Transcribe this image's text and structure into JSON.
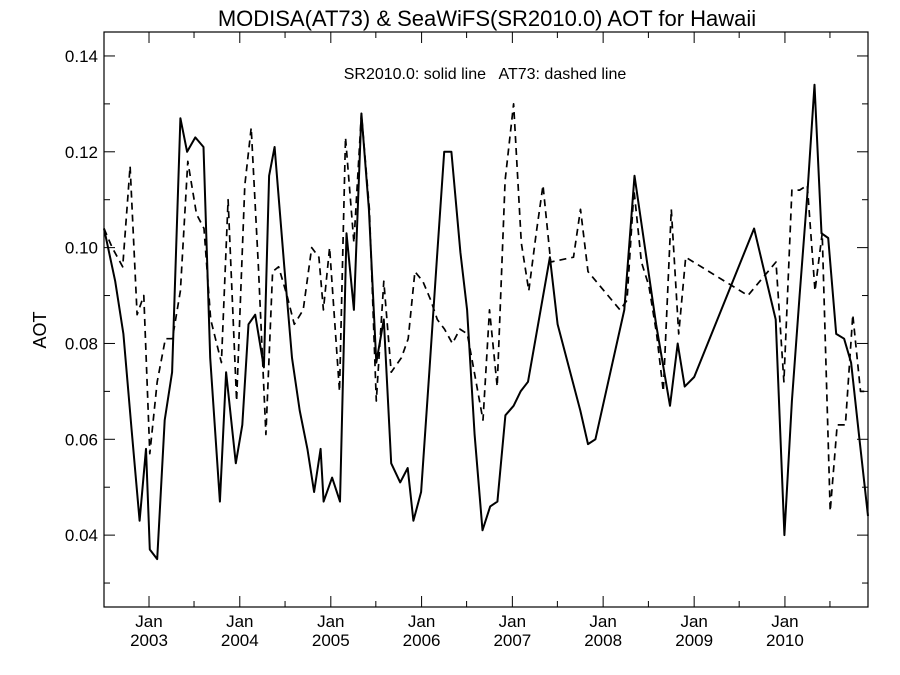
{
  "chart_data": {
    "type": "line",
    "title": "MODISA(AT73) & SeaWiFS(SR2010.0)  AOT for Hawaii",
    "ylabel": "AOT",
    "xlabel": "",
    "annotation": "SR2010.0: solid line   AT73: dashed line",
    "xlim": [
      "2002-07-04",
      "2010-12-01"
    ],
    "ylim": [
      0.025,
      0.145
    ],
    "y_ticks": [
      0.04,
      0.06,
      0.08,
      0.1,
      0.12,
      0.14
    ],
    "y_tick_labels": [
      "0.04",
      "0.06",
      "0.08",
      "0.10",
      "0.12",
      "0.14"
    ],
    "x_ticks": [
      {
        "date": "2003-01-01",
        "month": "Jan",
        "year": "2003"
      },
      {
        "date": "2004-01-01",
        "month": "Jan",
        "year": "2004"
      },
      {
        "date": "2005-01-01",
        "month": "Jan",
        "year": "2005"
      },
      {
        "date": "2006-01-01",
        "month": "Jan",
        "year": "2006"
      },
      {
        "date": "2007-01-01",
        "month": "Jan",
        "year": "2007"
      },
      {
        "date": "2008-01-01",
        "month": "Jan",
        "year": "2008"
      },
      {
        "date": "2009-01-01",
        "month": "Jan",
        "year": "2009"
      },
      {
        "date": "2010-01-01",
        "month": "Jan",
        "year": "2010"
      }
    ],
    "grid": false,
    "series": [
      {
        "name": "SR2010.0",
        "style": "solid",
        "color": "#000000",
        "points": [
          [
            "2002-07-04",
            0.104
          ],
          [
            "2002-08-18",
            0.093
          ],
          [
            "2002-09-20",
            0.082
          ],
          [
            "2002-10-23",
            0.062
          ],
          [
            "2002-11-24",
            0.043
          ],
          [
            "2002-12-20",
            0.058
          ],
          [
            "2003-01-04",
            0.037
          ],
          [
            "2003-02-03",
            0.035
          ],
          [
            "2003-03-05",
            0.064
          ],
          [
            "2003-04-04",
            0.074
          ],
          [
            "2003-05-07",
            0.127
          ],
          [
            "2003-06-03",
            0.12
          ],
          [
            "2003-07-06",
            0.123
          ],
          [
            "2003-08-08",
            0.121
          ],
          [
            "2003-09-04",
            0.077
          ],
          [
            "2003-10-13",
            0.047
          ],
          [
            "2003-11-07",
            0.074
          ],
          [
            "2003-12-16",
            0.055
          ],
          [
            "2004-01-11",
            0.063
          ],
          [
            "2004-02-05",
            0.084
          ],
          [
            "2004-03-03",
            0.086
          ],
          [
            "2004-04-07",
            0.075
          ],
          [
            "2004-04-28",
            0.115
          ],
          [
            "2004-05-20",
            0.121
          ],
          [
            "2004-06-28",
            0.096
          ],
          [
            "2004-07-29",
            0.077
          ],
          [
            "2004-08-29",
            0.066
          ],
          [
            "2004-09-29",
            0.058
          ],
          [
            "2004-10-26",
            0.049
          ],
          [
            "2004-11-21",
            0.058
          ],
          [
            "2004-12-03",
            0.047
          ],
          [
            "2005-01-06",
            0.052
          ],
          [
            "2005-02-07",
            0.047
          ],
          [
            "2005-03-05",
            0.103
          ],
          [
            "2005-04-04",
            0.087
          ],
          [
            "2005-05-04",
            0.128
          ],
          [
            "2005-06-03",
            0.108
          ],
          [
            "2005-07-03",
            0.076
          ],
          [
            "2005-08-02",
            0.085
          ],
          [
            "2005-09-01",
            0.055
          ],
          [
            "2005-10-07",
            0.051
          ],
          [
            "2005-11-06",
            0.054
          ],
          [
            "2005-11-29",
            0.043
          ],
          [
            "2005-12-30",
            0.049
          ],
          [
            "2006-02-01",
            0.074
          ],
          [
            "2006-03-04",
            0.098
          ],
          [
            "2006-04-02",
            0.12
          ],
          [
            "2006-05-01",
            0.12
          ],
          [
            "2006-06-06",
            0.099
          ],
          [
            "2006-07-03",
            0.087
          ],
          [
            "2006-08-02",
            0.061
          ],
          [
            "2006-09-03",
            0.041
          ],
          [
            "2006-10-04",
            0.046
          ],
          [
            "2006-11-02",
            0.047
          ],
          [
            "2006-12-04",
            0.065
          ],
          [
            "2007-01-06",
            0.067
          ],
          [
            "2007-02-03",
            0.07
          ],
          [
            "2007-03-05",
            0.072
          ],
          [
            "2007-06-01",
            0.098
          ],
          [
            "2007-07-02",
            0.084
          ],
          [
            "2007-10-01",
            0.066
          ],
          [
            "2007-11-01",
            0.059
          ],
          [
            "2007-12-01",
            0.06
          ],
          [
            "2008-03-26",
            0.087
          ],
          [
            "2008-05-06",
            0.115
          ],
          [
            "2008-08-01",
            0.084
          ],
          [
            "2008-09-26",
            0.067
          ],
          [
            "2008-10-27",
            0.08
          ],
          [
            "2008-11-24",
            0.071
          ],
          [
            "2009-01-01",
            0.073
          ],
          [
            "2009-08-30",
            0.104
          ],
          [
            "2009-11-25",
            0.085
          ],
          [
            "2009-12-30",
            0.04
          ],
          [
            "2010-01-29",
            0.068
          ],
          [
            "2010-03-01",
            0.09
          ],
          [
            "2010-04-01",
            0.111
          ],
          [
            "2010-04-30",
            0.134
          ],
          [
            "2010-05-28",
            0.103
          ],
          [
            "2010-06-24",
            0.102
          ],
          [
            "2010-07-26",
            0.082
          ],
          [
            "2010-08-27",
            0.081
          ],
          [
            "2010-09-24",
            0.076
          ],
          [
            "2010-10-30",
            0.059
          ],
          [
            "2010-12-01",
            0.044
          ]
        ]
      },
      {
        "name": "AT73",
        "style": "dashed",
        "color": "#000000",
        "points": [
          [
            "2002-07-04",
            0.104
          ],
          [
            "2002-08-06",
            0.1
          ],
          [
            "2002-09-17",
            0.096
          ],
          [
            "2002-10-17",
            0.117
          ],
          [
            "2002-11-14",
            0.086
          ],
          [
            "2002-12-11",
            0.09
          ],
          [
            "2003-01-04",
            0.057
          ],
          [
            "2003-02-03",
            0.072
          ],
          [
            "2003-03-08",
            0.081
          ],
          [
            "2003-04-05",
            0.081
          ],
          [
            "2003-05-07",
            0.091
          ],
          [
            "2003-06-06",
            0.118
          ],
          [
            "2003-07-11",
            0.107
          ],
          [
            "2003-08-10",
            0.104
          ],
          [
            "2003-09-06",
            0.085
          ],
          [
            "2003-10-19",
            0.076
          ],
          [
            "2003-11-15",
            0.11
          ],
          [
            "2003-12-19",
            0.068
          ],
          [
            "2004-01-21",
            0.113
          ],
          [
            "2004-02-16",
            0.125
          ],
          [
            "2004-03-16",
            0.096
          ],
          [
            "2004-04-15",
            0.061
          ],
          [
            "2004-05-12",
            0.095
          ],
          [
            "2004-06-05",
            0.096
          ],
          [
            "2004-07-09",
            0.09
          ],
          [
            "2004-08-07",
            0.084
          ],
          [
            "2004-09-12",
            0.087
          ],
          [
            "2004-10-16",
            0.1
          ],
          [
            "2004-11-14",
            0.098
          ],
          [
            "2004-12-02",
            0.087
          ],
          [
            "2004-12-27",
            0.1
          ],
          [
            "2005-02-05",
            0.07
          ],
          [
            "2005-03-01",
            0.123
          ],
          [
            "2005-04-04",
            0.101
          ],
          [
            "2005-05-04",
            0.128
          ],
          [
            "2005-06-05",
            0.108
          ],
          [
            "2005-07-03",
            0.068
          ],
          [
            "2005-08-02",
            0.093
          ],
          [
            "2005-09-01",
            0.074
          ],
          [
            "2005-10-12",
            0.077
          ],
          [
            "2005-11-08",
            0.081
          ],
          [
            "2005-12-05",
            0.095
          ],
          [
            "2006-01-06",
            0.093
          ],
          [
            "2006-02-07",
            0.089
          ],
          [
            "2006-03-05",
            0.085
          ],
          [
            "2006-04-03",
            0.083
          ],
          [
            "2006-05-05",
            0.08
          ],
          [
            "2006-06-04",
            0.083
          ],
          [
            "2006-07-04",
            0.082
          ],
          [
            "2006-08-01",
            0.074
          ],
          [
            "2006-09-05",
            0.064
          ],
          [
            "2006-10-01",
            0.087
          ],
          [
            "2006-11-01",
            0.071
          ],
          [
            "2006-12-03",
            0.114
          ],
          [
            "2007-01-06",
            0.13
          ],
          [
            "2007-02-06",
            0.101
          ],
          [
            "2007-03-08",
            0.091
          ],
          [
            "2007-04-07",
            0.103
          ],
          [
            "2007-05-04",
            0.113
          ],
          [
            "2007-06-04",
            0.097
          ],
          [
            "2007-09-04",
            0.098
          ],
          [
            "2007-10-02",
            0.108
          ],
          [
            "2007-11-01",
            0.095
          ],
          [
            "2008-03-09",
            0.087
          ],
          [
            "2008-04-06",
            0.089
          ],
          [
            "2008-05-04",
            0.112
          ],
          [
            "2008-06-03",
            0.097
          ],
          [
            "2008-07-03",
            0.092
          ],
          [
            "2008-08-03",
            0.082
          ],
          [
            "2008-08-30",
            0.07
          ],
          [
            "2008-10-01",
            0.108
          ],
          [
            "2008-10-31",
            0.082
          ],
          [
            "2008-11-28",
            0.098
          ],
          [
            "2009-08-05",
            0.09
          ],
          [
            "2009-11-26",
            0.097
          ],
          [
            "2009-12-28",
            0.072
          ],
          [
            "2010-01-29",
            0.112
          ],
          [
            "2010-03-01",
            0.112
          ],
          [
            "2010-04-01",
            0.113
          ],
          [
            "2010-05-02",
            0.091
          ],
          [
            "2010-05-31",
            0.103
          ],
          [
            "2010-07-02",
            0.045
          ],
          [
            "2010-07-30",
            0.063
          ],
          [
            "2010-09-01",
            0.063
          ],
          [
            "2010-10-01",
            0.086
          ],
          [
            "2010-11-01",
            0.07
          ],
          [
            "2010-12-01",
            0.07
          ]
        ]
      }
    ]
  }
}
